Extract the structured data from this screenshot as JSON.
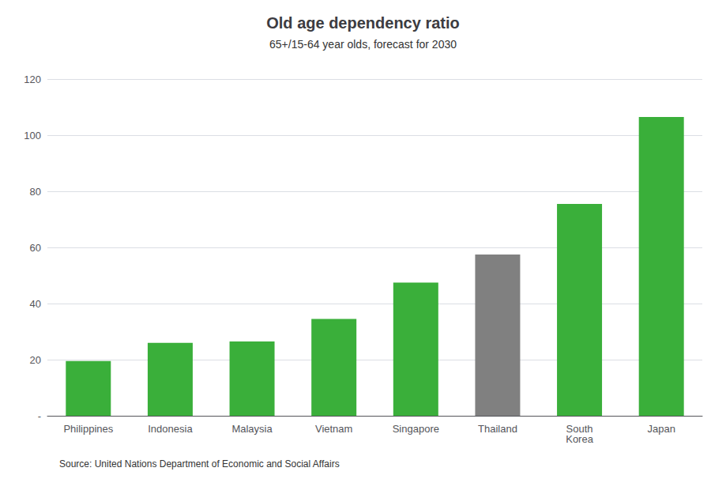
{
  "chart_data": {
    "type": "bar",
    "title": "Old age dependency ratio",
    "subtitle": "65+/15-64 year olds, forecast for 2030",
    "source": "Source: United Nations Department of Economic and Social Affairs",
    "categories": [
      "Philippines",
      "Indonesia",
      "Malaysia",
      "Vietnam",
      "Singapore",
      "Thailand",
      "South\nKorea",
      "Japan"
    ],
    "values": [
      19.5,
      26.0,
      26.5,
      34.5,
      47.5,
      57.5,
      75.5,
      106.5
    ],
    "colors": [
      "#3aaf3a",
      "#3aaf3a",
      "#3aaf3a",
      "#3aaf3a",
      "#3aaf3a",
      "#808080",
      "#3aaf3a",
      "#3aaf3a"
    ],
    "ylim": [
      0,
      120
    ],
    "yticks": [
      {
        "value": 0,
        "label": "-"
      },
      20,
      40,
      60,
      80,
      100,
      120
    ],
    "grid": true
  }
}
